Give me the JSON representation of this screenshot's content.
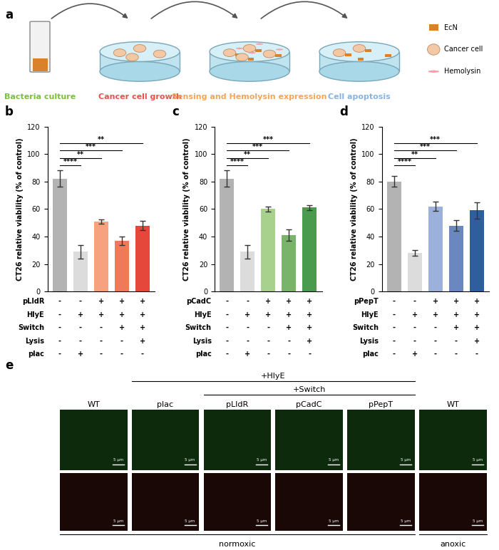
{
  "panel_labels": [
    "a",
    "b",
    "c",
    "d",
    "e"
  ],
  "schematic": {
    "steps": [
      {
        "label": "Bacteria culture",
        "color": "#7cbf3c"
      },
      {
        "label": "Cancer cell growth",
        "color": "#e8524a"
      },
      {
        "label": "Sensing and Hemolysin expression",
        "color": "#f2a65a"
      },
      {
        "label": "Cell apoptosis",
        "color": "#8ab4e0"
      }
    ],
    "legend": [
      {
        "label": "EcN",
        "color": "#d9822b"
      },
      {
        "label": "Cancer cell",
        "color": "#f3c8a5"
      },
      {
        "label": "Hemolysin",
        "color": "#f4a0a8"
      }
    ]
  },
  "chart_data": [
    {
      "type": "bar",
      "ylabel": "CT26 relative viability (% of control)",
      "categories": [
        null,
        null,
        null,
        null,
        null
      ],
      "values": [
        82,
        29,
        51,
        37,
        48
      ],
      "errors": [
        6,
        5,
        1.5,
        3,
        3.5
      ],
      "colors": [
        "#b3b3b3",
        "#dcdcdc",
        "#f6a27f",
        "#ee7a5a",
        "#e5483a"
      ],
      "ylim": [
        0,
        120
      ],
      "yticks": [
        0,
        20,
        40,
        60,
        80,
        100,
        120
      ],
      "conditions": [
        {
          "label": "pLldR",
          "marks": [
            "-",
            "-",
            "+",
            "+",
            "+"
          ]
        },
        {
          "label": "HlyE",
          "marks": [
            "-",
            "+",
            "+",
            "+",
            "+"
          ]
        },
        {
          "label": "Switch",
          "marks": [
            "-",
            "-",
            "-",
            "+",
            "+"
          ]
        },
        {
          "label": "Lysis",
          "marks": [
            "-",
            "-",
            "-",
            "-",
            "+"
          ]
        },
        {
          "label": "plac",
          "marks": [
            "-",
            "+",
            "-",
            "-",
            "-"
          ]
        }
      ],
      "significance": [
        {
          "from": 0,
          "to": 1,
          "label": "****"
        },
        {
          "from": 0,
          "to": 2,
          "label": "**"
        },
        {
          "from": 0,
          "to": 3,
          "label": "***"
        },
        {
          "from": 0,
          "to": 4,
          "label": "**"
        }
      ]
    },
    {
      "type": "bar",
      "ylabel": "CT26 relative viability (% of control)",
      "categories": [
        null,
        null,
        null,
        null,
        null
      ],
      "values": [
        82,
        29,
        60,
        41,
        61
      ],
      "errors": [
        6,
        5,
        2,
        4,
        2
      ],
      "colors": [
        "#b3b3b3",
        "#dcdcdc",
        "#a9d18e",
        "#78b469",
        "#4a9b4d"
      ],
      "ylim": [
        0,
        120
      ],
      "yticks": [
        0,
        20,
        40,
        60,
        80,
        100,
        120
      ],
      "conditions": [
        {
          "label": "pCadC",
          "marks": [
            "-",
            "-",
            "+",
            "+",
            "+"
          ]
        },
        {
          "label": "HlyE",
          "marks": [
            "-",
            "+",
            "+",
            "+",
            "+"
          ]
        },
        {
          "label": "Switch",
          "marks": [
            "-",
            "-",
            "-",
            "+",
            "+"
          ]
        },
        {
          "label": "Lysis",
          "marks": [
            "-",
            "-",
            "-",
            "-",
            "+"
          ]
        },
        {
          "label": "plac",
          "marks": [
            "-",
            "+",
            "-",
            "-",
            "-"
          ]
        }
      ],
      "significance": [
        {
          "from": 0,
          "to": 1,
          "label": "****"
        },
        {
          "from": 0,
          "to": 2,
          "label": "**"
        },
        {
          "from": 0,
          "to": 3,
          "label": "***"
        },
        {
          "from": 0,
          "to": 4,
          "label": "***"
        }
      ]
    },
    {
      "type": "bar",
      "ylabel": "CT26 relative viability (% of control)",
      "categories": [
        null,
        null,
        null,
        null,
        null
      ],
      "values": [
        80,
        28,
        62,
        48,
        59
      ],
      "errors": [
        4,
        2,
        3.5,
        4,
        6
      ],
      "colors": [
        "#b3b3b3",
        "#dcdcdc",
        "#9bb1da",
        "#6a87c0",
        "#2f5e9f"
      ],
      "ylim": [
        0,
        120
      ],
      "yticks": [
        0,
        20,
        40,
        60,
        80,
        100,
        120
      ],
      "conditions": [
        {
          "label": "pPepT",
          "marks": [
            "-",
            "-",
            "+",
            "+",
            "+"
          ]
        },
        {
          "label": "HlyE",
          "marks": [
            "-",
            "+",
            "+",
            "+",
            "+"
          ]
        },
        {
          "label": "Switch",
          "marks": [
            "-",
            "-",
            "-",
            "+",
            "+"
          ]
        },
        {
          "label": "Lysis",
          "marks": [
            "-",
            "-",
            "-",
            "-",
            "+"
          ]
        },
        {
          "label": "plac",
          "marks": [
            "-",
            "+",
            "-",
            "-",
            "-"
          ]
        }
      ],
      "significance": [
        {
          "from": 0,
          "to": 1,
          "label": "****"
        },
        {
          "from": 0,
          "to": 2,
          "label": "**"
        },
        {
          "from": 0,
          "to": 3,
          "label": "***"
        },
        {
          "from": 0,
          "to": 4,
          "label": "***"
        }
      ]
    }
  ],
  "images": {
    "groups": [
      "+HlyE",
      "+Switch"
    ],
    "columns": [
      "WT",
      "plac",
      "pLldR",
      "pCadC",
      "pPepT",
      "WT"
    ],
    "conditions": [
      "normoxic",
      "anoxic"
    ],
    "scale_bar": "5 μm"
  }
}
